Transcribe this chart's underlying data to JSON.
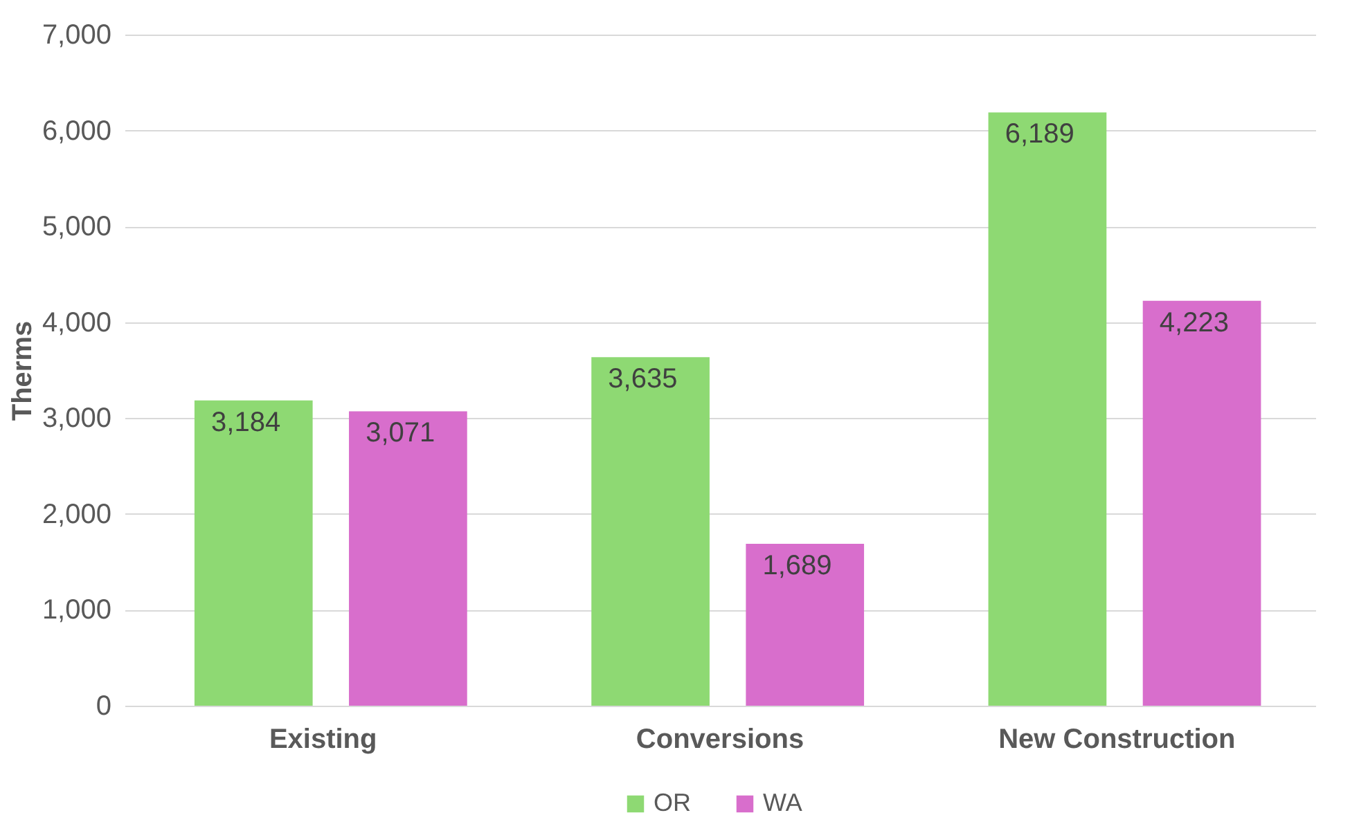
{
  "chart_data": {
    "type": "bar",
    "ylabel": "Therms",
    "categories": [
      "Existing",
      "Conversions",
      "New Construction"
    ],
    "series": [
      {
        "name": "OR",
        "color": "#8ed973",
        "values": [
          3184,
          3635,
          6189
        ],
        "value_labels": [
          "3,184",
          "3,635",
          "6,189"
        ]
      },
      {
        "name": "WA",
        "color": "#d86ecc",
        "values": [
          3071,
          1689,
          4223
        ],
        "value_labels": [
          "3,071",
          "1,689",
          "4,223"
        ]
      }
    ],
    "ylim": [
      0,
      7000
    ],
    "yticks": [
      {
        "value": 0,
        "label": "0"
      },
      {
        "value": 1000,
        "label": "1,000"
      },
      {
        "value": 2000,
        "label": "2,000"
      },
      {
        "value": 3000,
        "label": "3,000"
      },
      {
        "value": 4000,
        "label": "4,000"
      },
      {
        "value": 5000,
        "label": "5,000"
      },
      {
        "value": 6000,
        "label": "6,000"
      },
      {
        "value": 7000,
        "label": "7,000"
      }
    ],
    "grid": "y",
    "legend": "bottom"
  }
}
